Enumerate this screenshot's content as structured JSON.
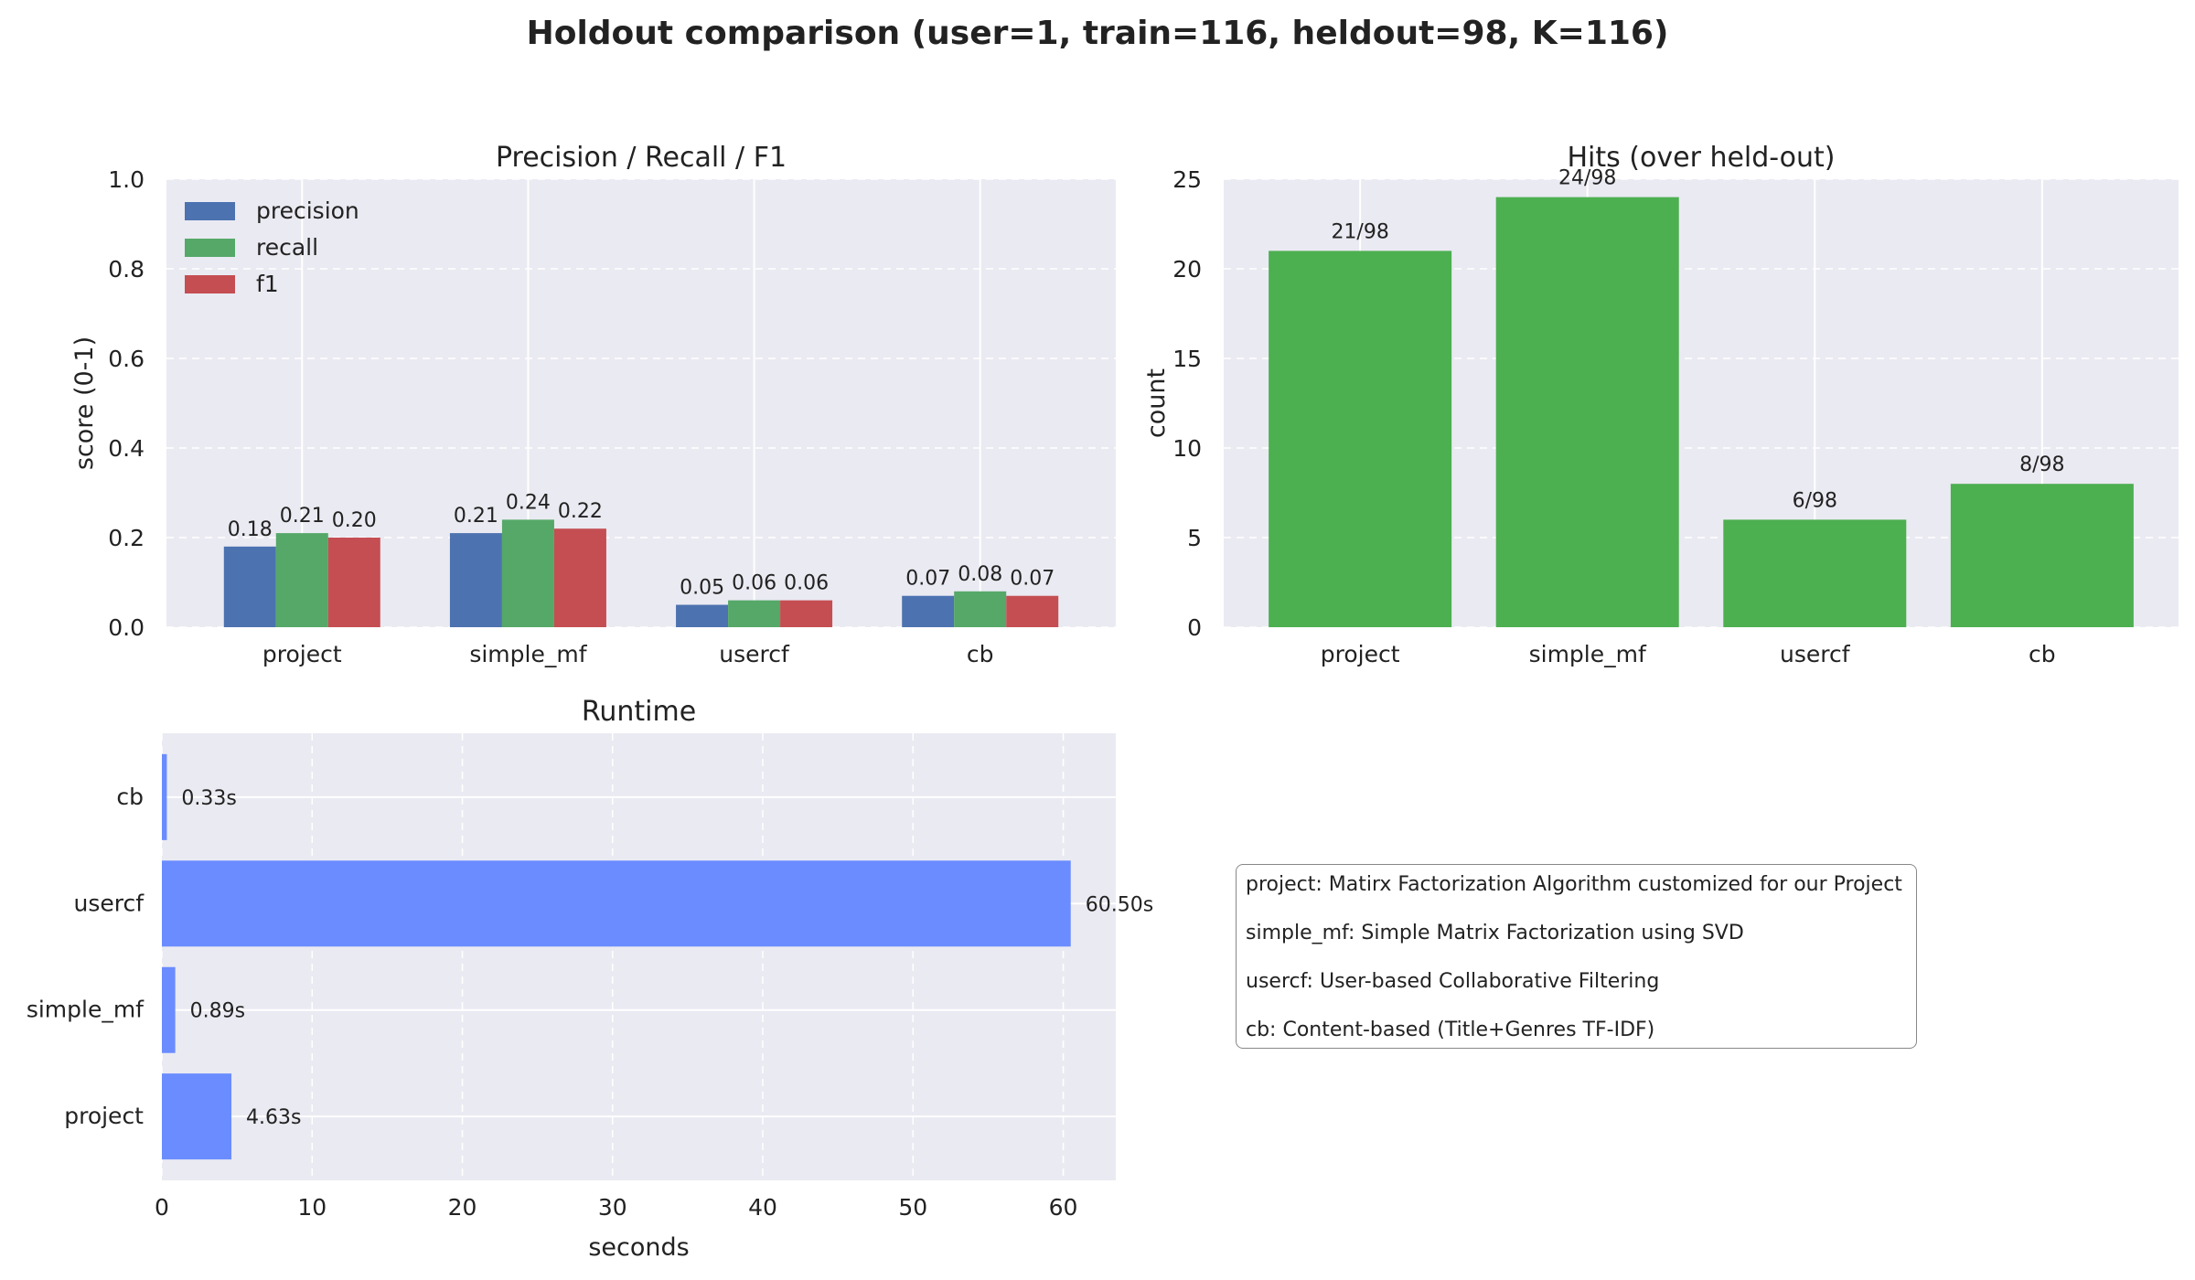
{
  "title": "Holdout comparison (user=1, train=116, heldout=98, K=116)",
  "colors": {
    "precision": "#4c72b0",
    "recall": "#55a868",
    "f1": "#c44e52",
    "hits": "#4caf50",
    "runtime": "#6a8cff",
    "panel_bg": "#eaeaf2",
    "grid": "#ffffff"
  },
  "chart_data": [
    {
      "type": "bar",
      "title": "Precision / Recall / F1",
      "xlabel": "",
      "ylabel": "score (0-1)",
      "ylim": [
        0,
        1.0
      ],
      "yticks": [
        "0.0",
        "0.2",
        "0.4",
        "0.6",
        "0.8",
        "1.0"
      ],
      "legend_position": "top-left",
      "categories": [
        "project",
        "simple_mf",
        "usercf",
        "cb"
      ],
      "series": [
        {
          "name": "precision",
          "values": [
            0.18,
            0.21,
            0.05,
            0.07
          ],
          "labels": [
            "0.18",
            "0.21",
            "0.05",
            "0.07"
          ]
        },
        {
          "name": "recall",
          "values": [
            0.21,
            0.24,
            0.06,
            0.08
          ],
          "labels": [
            "0.21",
            "0.24",
            "0.06",
            "0.08"
          ]
        },
        {
          "name": "f1",
          "values": [
            0.2,
            0.22,
            0.06,
            0.07
          ],
          "labels": [
            "0.20",
            "0.22",
            "0.06",
            "0.07"
          ]
        }
      ]
    },
    {
      "type": "bar",
      "title": "Hits (over held-out)",
      "xlabel": "",
      "ylabel": "count",
      "ylim": [
        0,
        25
      ],
      "yticks": [
        "0",
        "5",
        "10",
        "15",
        "20",
        "25"
      ],
      "categories": [
        "project",
        "simple_mf",
        "usercf",
        "cb"
      ],
      "values": [
        21,
        24,
        6,
        8
      ],
      "labels": [
        "21/98",
        "24/98",
        "6/98",
        "8/98"
      ]
    },
    {
      "type": "bar",
      "orientation": "horizontal",
      "title": "Runtime",
      "xlabel": "seconds",
      "ylabel": "",
      "xlim": [
        0,
        63.5
      ],
      "xticks": [
        "0",
        "10",
        "20",
        "30",
        "40",
        "50",
        "60"
      ],
      "categories": [
        "project",
        "simple_mf",
        "usercf",
        "cb"
      ],
      "values": [
        4.63,
        0.89,
        60.5,
        0.33
      ],
      "labels": [
        "4.63s",
        "0.89s",
        "60.50s",
        "0.33s"
      ]
    }
  ],
  "notes": [
    "project: Matirx Factorization Algorithm customized  for our Project",
    "simple_mf: Simple Matrix Factorization using SVD",
    "usercf: User-based Collaborative Filtering",
    "cb: Content-based (Title+Genres TF-IDF)"
  ]
}
